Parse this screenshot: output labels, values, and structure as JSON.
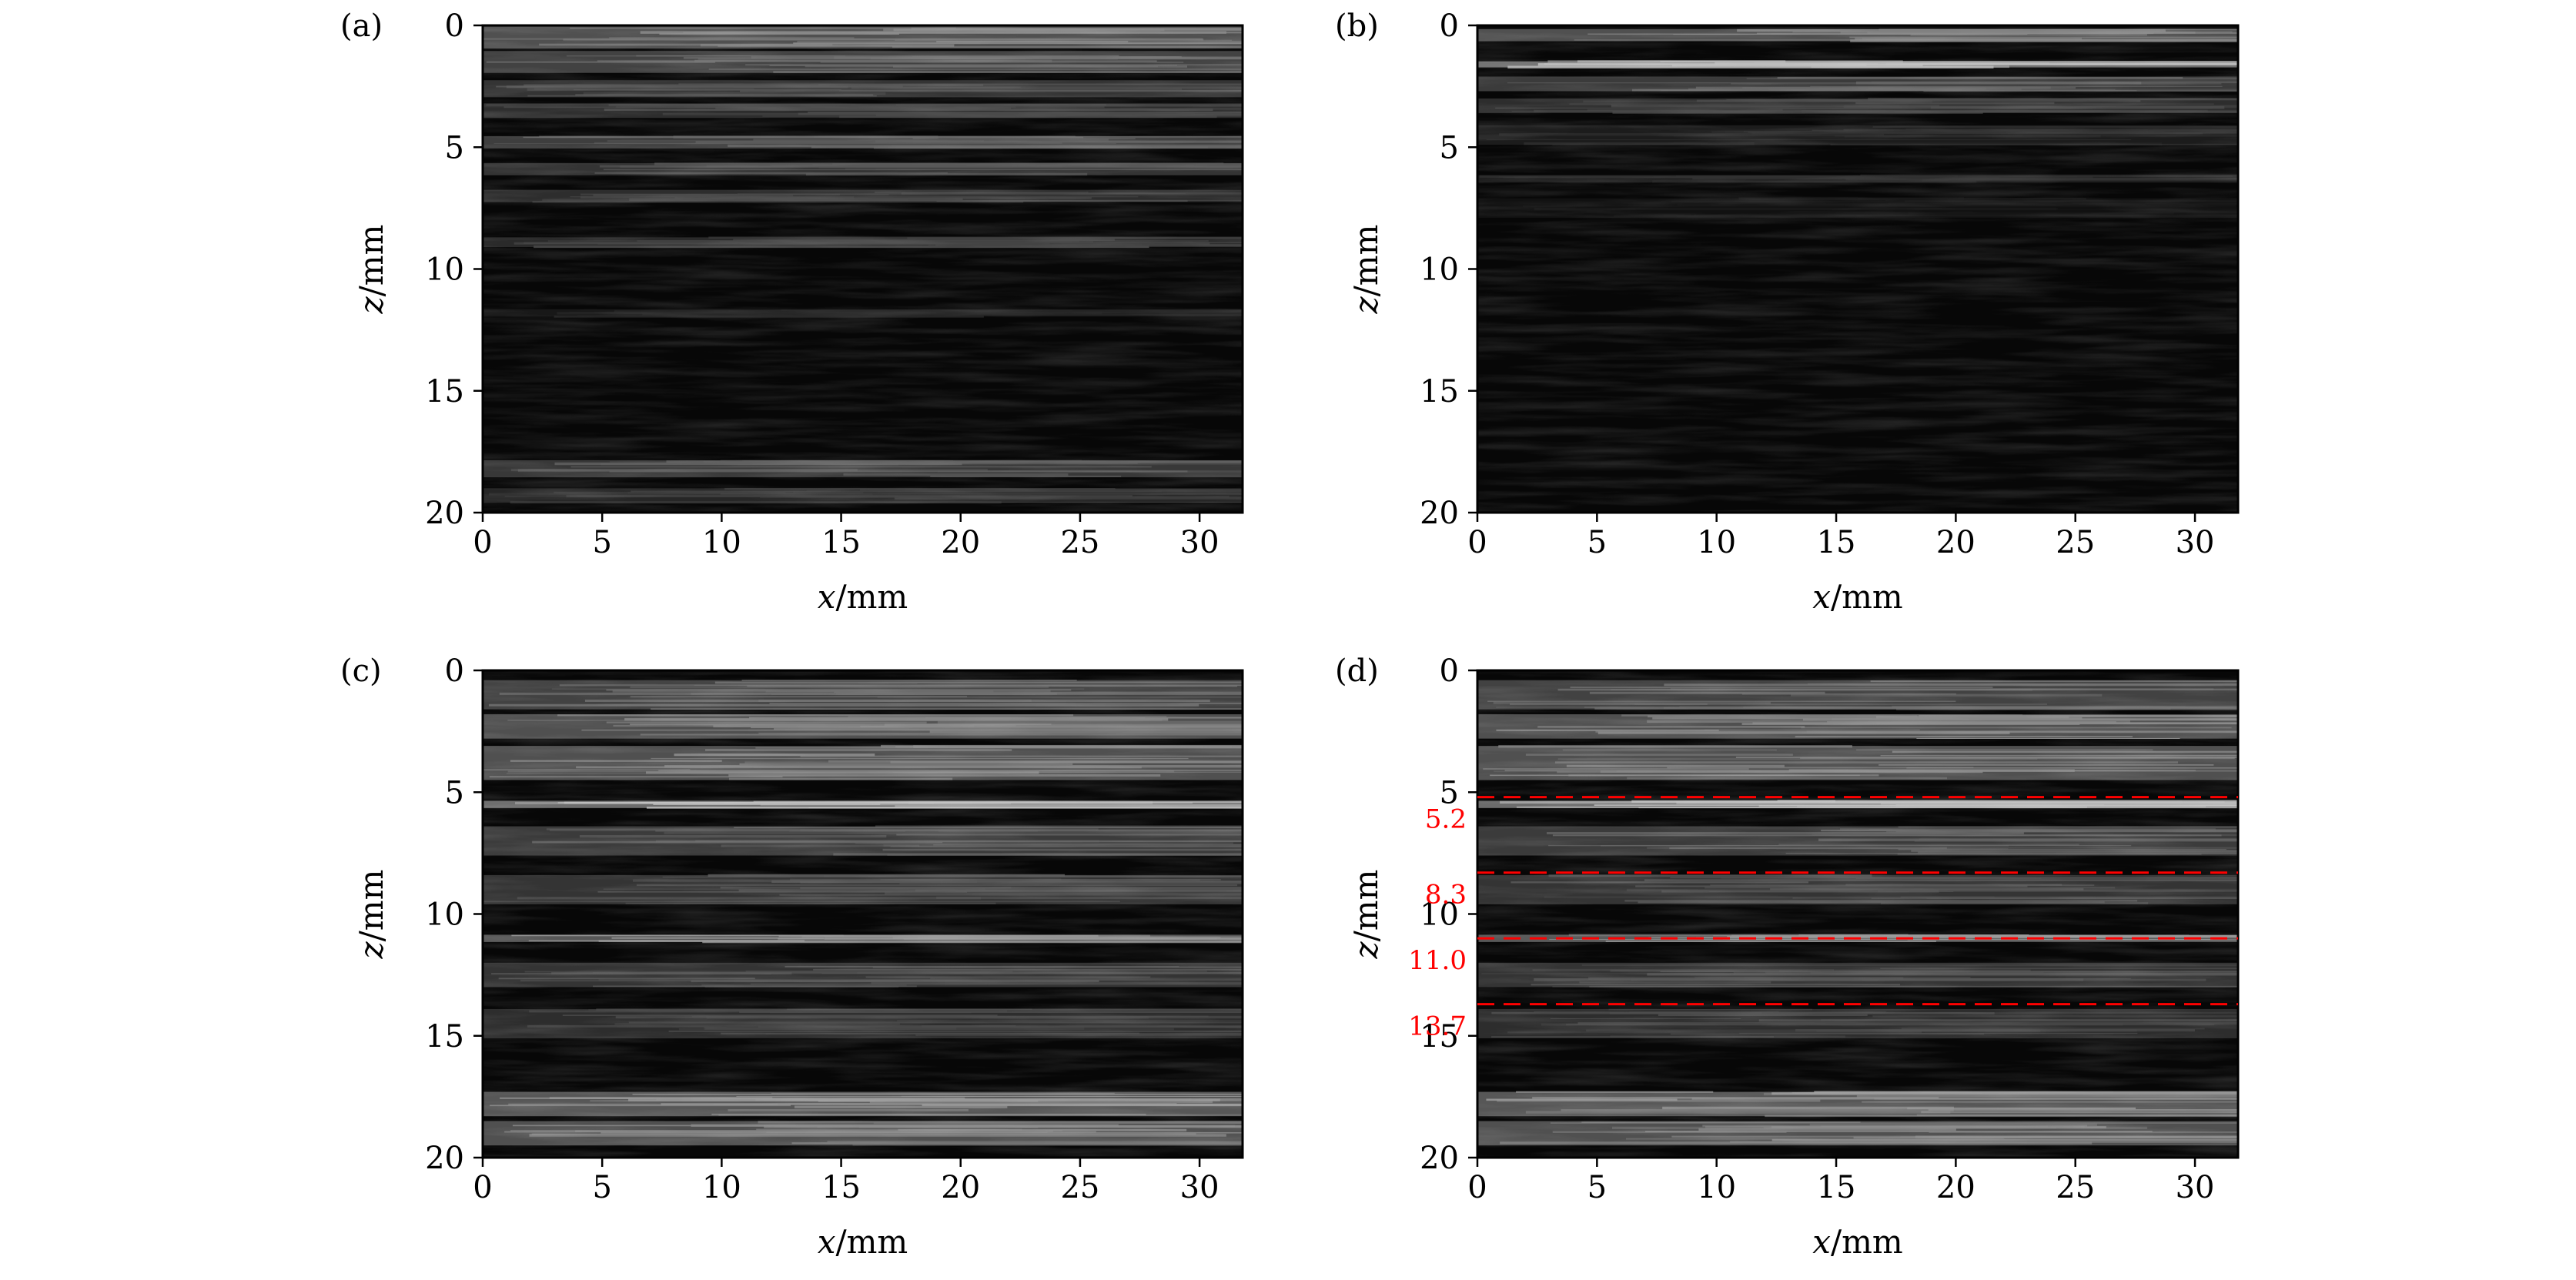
{
  "chart_data": [
    {
      "type": "heatmap",
      "panel_label": "(a)",
      "colormap": "gray",
      "xlabel_var": "x",
      "xlabel_unit": "/mm",
      "ylabel_var": "z",
      "ylabel_unit": "/mm",
      "xlim": [
        0,
        31.8
      ],
      "ylim": [
        20,
        0
      ],
      "xticks": [
        0,
        5,
        10,
        15,
        20,
        25,
        30
      ],
      "yticks": [
        0,
        5,
        10,
        15,
        20
      ],
      "bands": [
        {
          "z": 0.5,
          "intensity": 0.55,
          "width": 0.9
        },
        {
          "z": 1.5,
          "intensity": 0.45,
          "width": 0.9
        },
        {
          "z": 2.6,
          "intensity": 0.35,
          "width": 0.7
        },
        {
          "z": 3.5,
          "intensity": 0.3,
          "width": 0.6
        },
        {
          "z": 4.8,
          "intensity": 0.42,
          "width": 0.5
        },
        {
          "z": 5.9,
          "intensity": 0.35,
          "width": 0.5
        },
        {
          "z": 7.0,
          "intensity": 0.3,
          "width": 0.5
        },
        {
          "z": 8.9,
          "intensity": 0.28,
          "width": 0.4
        },
        {
          "z": 11.8,
          "intensity": 0.15,
          "width": 0.3
        },
        {
          "z": 18.2,
          "intensity": 0.38,
          "width": 0.7
        },
        {
          "z": 19.3,
          "intensity": 0.25,
          "width": 0.6
        }
      ],
      "dashed_lines": []
    },
    {
      "type": "heatmap",
      "panel_label": "(b)",
      "colormap": "gray",
      "xlabel_var": "x",
      "xlabel_unit": "/mm",
      "ylabel_var": "z",
      "ylabel_unit": "/mm",
      "xlim": [
        0,
        31.8
      ],
      "ylim": [
        20,
        0
      ],
      "xticks": [
        0,
        5,
        10,
        15,
        20,
        25,
        30
      ],
      "yticks": [
        0,
        5,
        10,
        15,
        20
      ],
      "bands": [
        {
          "z": 0.4,
          "intensity": 0.55,
          "width": 0.5
        },
        {
          "z": 1.6,
          "intensity": 0.75,
          "width": 0.25
        },
        {
          "z": 2.4,
          "intensity": 0.4,
          "width": 0.6
        },
        {
          "z": 3.3,
          "intensity": 0.3,
          "width": 0.6
        },
        {
          "z": 4.5,
          "intensity": 0.18,
          "width": 0.8
        },
        {
          "z": 6.3,
          "intensity": 0.2,
          "width": 0.3
        },
        {
          "z": 7.5,
          "intensity": 0.1,
          "width": 0.8
        }
      ],
      "dashed_lines": []
    },
    {
      "type": "heatmap",
      "panel_label": "(c)",
      "colormap": "gray",
      "xlabel_var": "x",
      "xlabel_unit": "/mm",
      "ylabel_var": "z",
      "ylabel_unit": "/mm",
      "xlim": [
        0,
        31.8
      ],
      "ylim": [
        20,
        0
      ],
      "xticks": [
        0,
        5,
        10,
        15,
        20,
        25,
        30
      ],
      "yticks": [
        0,
        5,
        10,
        15,
        20
      ],
      "bands": [
        {
          "z": 1.0,
          "intensity": 0.45,
          "width": 1.2
        },
        {
          "z": 2.3,
          "intensity": 0.55,
          "width": 1.0
        },
        {
          "z": 3.8,
          "intensity": 0.55,
          "width": 1.4
        },
        {
          "z": 5.5,
          "intensity": 0.75,
          "width": 0.3
        },
        {
          "z": 7.0,
          "intensity": 0.4,
          "width": 1.2
        },
        {
          "z": 9.0,
          "intensity": 0.35,
          "width": 1.2
        },
        {
          "z": 11.0,
          "intensity": 0.6,
          "width": 0.3
        },
        {
          "z": 12.5,
          "intensity": 0.35,
          "width": 1.0
        },
        {
          "z": 14.5,
          "intensity": 0.3,
          "width": 1.2
        },
        {
          "z": 17.8,
          "intensity": 0.6,
          "width": 1.0
        },
        {
          "z": 19.0,
          "intensity": 0.55,
          "width": 1.0
        }
      ],
      "dashed_lines": []
    },
    {
      "type": "heatmap",
      "panel_label": "(d)",
      "colormap": "gray",
      "xlabel_var": "x",
      "xlabel_unit": "/mm",
      "ylabel_var": "z",
      "ylabel_unit": "/mm",
      "xlim": [
        0,
        31.8
      ],
      "ylim": [
        20,
        0
      ],
      "xticks": [
        0,
        5,
        10,
        15,
        20,
        25,
        30
      ],
      "yticks": [
        0,
        5,
        10,
        15,
        20
      ],
      "bands": [
        {
          "z": 1.0,
          "intensity": 0.45,
          "width": 1.2
        },
        {
          "z": 2.3,
          "intensity": 0.55,
          "width": 1.0
        },
        {
          "z": 3.8,
          "intensity": 0.55,
          "width": 1.4
        },
        {
          "z": 5.5,
          "intensity": 0.75,
          "width": 0.3
        },
        {
          "z": 7.0,
          "intensity": 0.4,
          "width": 1.2
        },
        {
          "z": 9.0,
          "intensity": 0.35,
          "width": 1.2
        },
        {
          "z": 11.0,
          "intensity": 0.6,
          "width": 0.3
        },
        {
          "z": 12.5,
          "intensity": 0.35,
          "width": 1.0
        },
        {
          "z": 14.5,
          "intensity": 0.3,
          "width": 1.2
        },
        {
          "z": 17.8,
          "intensity": 0.6,
          "width": 1.0
        },
        {
          "z": 19.0,
          "intensity": 0.55,
          "width": 1.0
        }
      ],
      "dashed_lines": [
        {
          "z": 5.2,
          "label": "5.2"
        },
        {
          "z": 8.3,
          "label": "8.3"
        },
        {
          "z": 11.0,
          "label": "11.0"
        },
        {
          "z": 13.7,
          "label": "13.7"
        }
      ]
    }
  ],
  "colors": {
    "annotation": "#ff0000",
    "axis": "#000000",
    "background": "#ffffff"
  }
}
